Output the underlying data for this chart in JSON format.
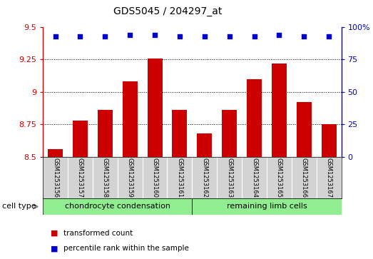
{
  "title": "GDS5045 / 204297_at",
  "samples": [
    "GSM1253156",
    "GSM1253157",
    "GSM1253158",
    "GSM1253159",
    "GSM1253160",
    "GSM1253161",
    "GSM1253162",
    "GSM1253163",
    "GSM1253164",
    "GSM1253165",
    "GSM1253166",
    "GSM1253167"
  ],
  "bar_values": [
    8.56,
    8.78,
    8.86,
    9.08,
    9.26,
    8.86,
    8.68,
    8.86,
    9.1,
    9.22,
    8.92,
    8.75
  ],
  "percentile_values": [
    93,
    93,
    93,
    94,
    94,
    93,
    93,
    93,
    93,
    94,
    93,
    93
  ],
  "bar_color": "#cc0000",
  "dot_color": "#0000cc",
  "ylim_left": [
    8.5,
    9.5
  ],
  "ylim_right": [
    0,
    100
  ],
  "yticks_left": [
    8.5,
    8.75,
    9.0,
    9.25,
    9.5
  ],
  "yticks_right": [
    0,
    25,
    50,
    75,
    100
  ],
  "ytick_labels_right": [
    "0",
    "25",
    "50",
    "75",
    "100%"
  ],
  "ytick_labels_left": [
    "8.5",
    "8.75",
    "9",
    "9.25",
    "9.5"
  ],
  "grid_lines": [
    8.75,
    9.0,
    9.25
  ],
  "group_starts": [
    0,
    6
  ],
  "group_ends": [
    6,
    12
  ],
  "group_labels": [
    "chondrocyte condensation",
    "remaining limb cells"
  ],
  "group_color": "#90EE90",
  "cell_type_label": "cell type",
  "legend_items": [
    {
      "label": "transformed count",
      "color": "#cc0000"
    },
    {
      "label": "percentile rank within the sample",
      "color": "#0000cc"
    }
  ],
  "bar_bottom": 8.5,
  "plot_bg": "#ffffff",
  "label_area_bg": "#d3d3d3",
  "spine_color_left": "#cc0000",
  "spine_color_right": "#0000cc"
}
